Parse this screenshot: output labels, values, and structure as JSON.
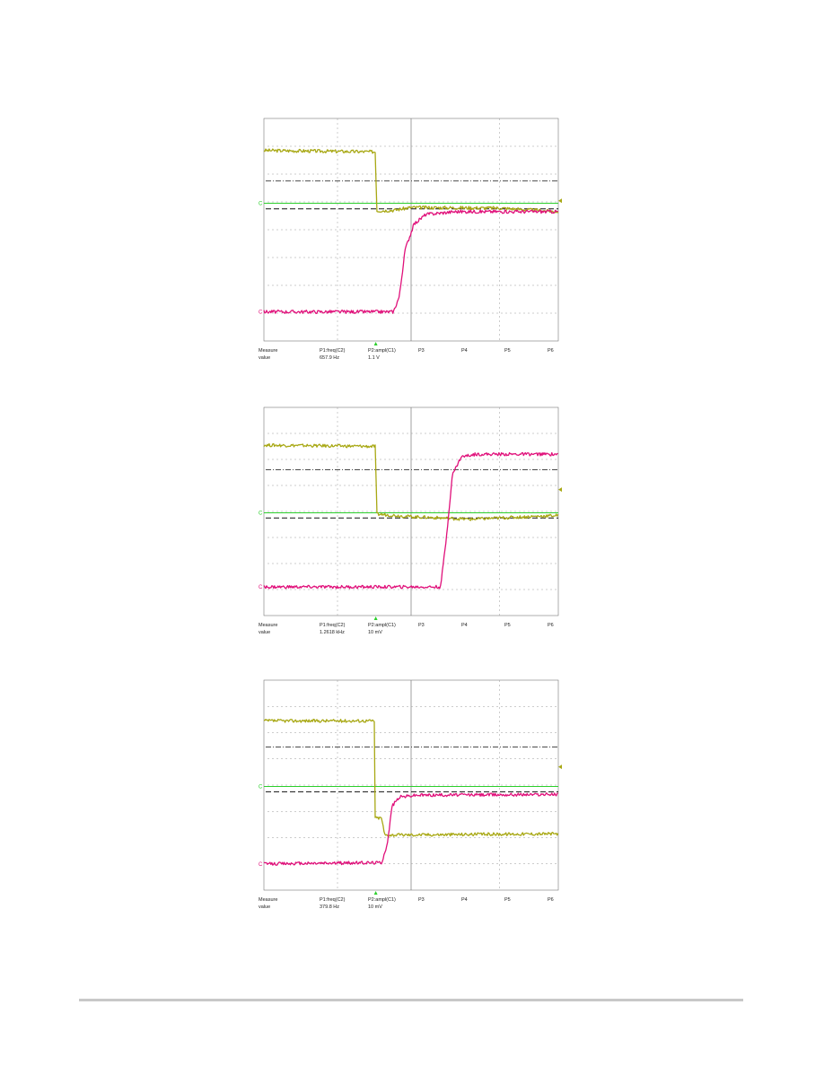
{
  "colors": {
    "ch_yellow": "#a8a814",
    "ch_magenta": "#e0107a",
    "ch_green": "#2ccf2c",
    "grid": "#9a9a9a",
    "cursor_black": "#111111"
  },
  "chart_data": [
    {
      "type": "line",
      "title": "",
      "x_range": [
        0,
        10
      ],
      "y_range": [
        0,
        8
      ],
      "grid": true,
      "channel_markers": [
        "C",
        "C"
      ],
      "measurements": {
        "row1": [
          "Measure",
          "P1:freq(C2)",
          "P2:ampl(C1)",
          "P3",
          "P4",
          "P5",
          "P6"
        ],
        "row2": [
          "value",
          "657.9 Hz",
          "1.1 V",
          "",
          "",
          "",
          ""
        ]
      },
      "levels": {
        "black_dashdot": 5.75,
        "black_dashed": 4.75,
        "green": 4.95
      },
      "series": [
        {
          "color": "yellow",
          "values": [
            [
              0,
              6.85
            ],
            [
              3.8,
              6.8
            ],
            [
              3.82,
              4.68
            ],
            [
              4.4,
              4.7
            ],
            [
              5.0,
              4.8
            ],
            [
              8.0,
              4.78
            ],
            [
              10,
              4.65
            ]
          ]
        },
        {
          "color": "magenta",
          "values": [
            [
              0,
              1.05
            ],
            [
              4.4,
              1.05
            ],
            [
              4.6,
              1.6
            ],
            [
              4.8,
              3.3
            ],
            [
              5.1,
              4.2
            ],
            [
              5.5,
              4.55
            ],
            [
              6.5,
              4.65
            ],
            [
              10,
              4.65
            ]
          ]
        }
      ]
    },
    {
      "type": "line",
      "title": "",
      "x_range": [
        0,
        10
      ],
      "y_range": [
        0,
        8
      ],
      "grid": true,
      "channel_markers": [
        "C",
        "C"
      ],
      "measurements": {
        "row1": [
          "Measure",
          "P1:freq(C2)",
          "P2:ampl(C1)",
          "P3",
          "P4",
          "P5",
          "P6"
        ],
        "row2": [
          "value",
          "1.2618 kHz",
          "10 mV",
          "",
          "",
          "",
          ""
        ]
      },
      "levels": {
        "black_dashdot": 5.6,
        "black_dashed": 3.75,
        "green": 3.95
      },
      "series": [
        {
          "color": "yellow",
          "values": [
            [
              0,
              6.55
            ],
            [
              3.8,
              6.5
            ],
            [
              3.82,
              3.9
            ],
            [
              5.0,
              3.8
            ],
            [
              7.0,
              3.7
            ],
            [
              10,
              3.85
            ]
          ]
        },
        {
          "color": "magenta",
          "values": [
            [
              0,
              1.1
            ],
            [
              6.0,
              1.1
            ],
            [
              6.2,
              3.0
            ],
            [
              6.4,
              5.4
            ],
            [
              6.7,
              6.1
            ],
            [
              7.2,
              6.2
            ],
            [
              10,
              6.2
            ]
          ]
        }
      ]
    },
    {
      "type": "line",
      "title": "",
      "x_range": [
        0,
        10
      ],
      "y_range": [
        0,
        8
      ],
      "grid": true,
      "channel_markers": [
        "C",
        "C"
      ],
      "measurements": {
        "row1": [
          "Measure",
          "P1:freq(C2)",
          "P2:ampl(C1)",
          "P3",
          "P4",
          "P5",
          "P6"
        ],
        "row2": [
          "value",
          "379.8 Hz",
          "10 mV",
          "",
          "",
          "",
          ""
        ]
      },
      "levels": {
        "black_dashdot": 5.45,
        "black_dashed": 3.75,
        "green": 3.95
      },
      "series": [
        {
          "color": "yellow",
          "values": [
            [
              0,
              6.45
            ],
            [
              3.75,
              6.45
            ],
            [
              3.77,
              2.75
            ],
            [
              4.0,
              2.75
            ],
            [
              4.1,
              2.1
            ],
            [
              10,
              2.15
            ]
          ]
        },
        {
          "color": "magenta",
          "values": [
            [
              0,
              1.0
            ],
            [
              4.0,
              1.05
            ],
            [
              4.2,
              1.8
            ],
            [
              4.35,
              3.2
            ],
            [
              4.6,
              3.55
            ],
            [
              5.2,
              3.62
            ],
            [
              10,
              3.65
            ]
          ]
        }
      ]
    }
  ]
}
